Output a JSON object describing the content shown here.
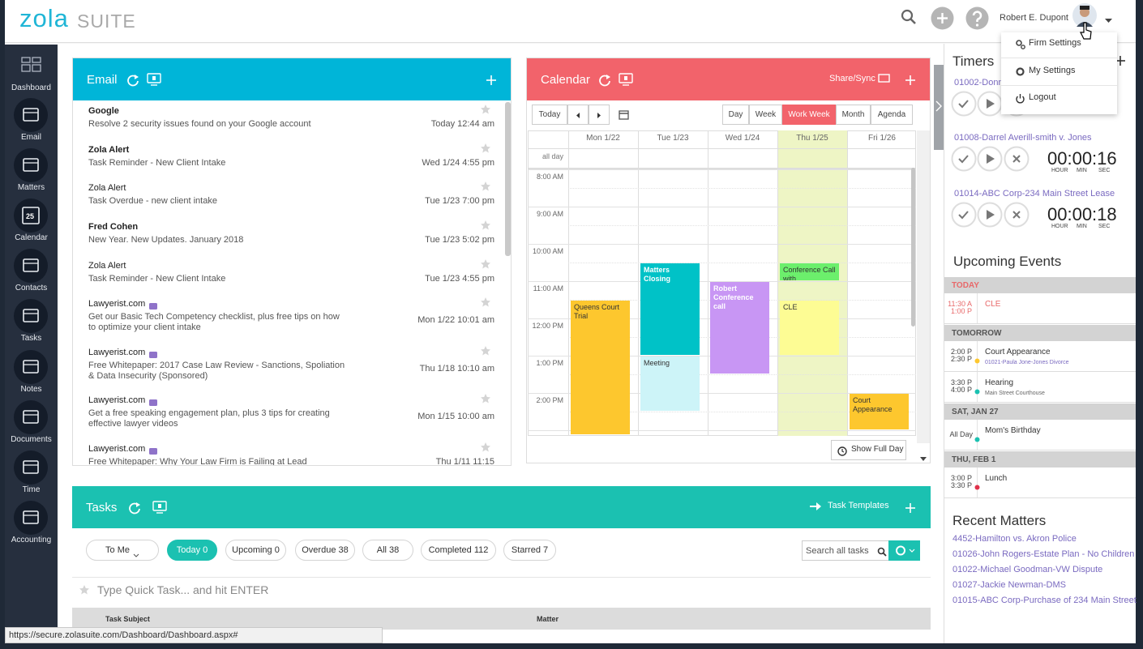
{
  "header": {
    "logo_main": "zola",
    "logo_sub": "SUITE",
    "user_name": "Robert E. Dupont"
  },
  "user_menu": [
    "Firm Settings",
    "My Settings",
    "Logout"
  ],
  "sidebar": [
    {
      "label": "Dashboard"
    },
    {
      "label": "Email"
    },
    {
      "label": "Matters"
    },
    {
      "label": "Calendar",
      "icon_text": "25"
    },
    {
      "label": "Contacts"
    },
    {
      "label": "Tasks"
    },
    {
      "label": "Notes"
    },
    {
      "label": "Documents"
    },
    {
      "label": "Time"
    },
    {
      "label": "Accounting"
    }
  ],
  "email": {
    "title": "Email",
    "items": [
      {
        "sender": "Google",
        "subject": "Resolve 2 security issues found on your Google account",
        "date": "Today 12:44 am",
        "unread": true
      },
      {
        "sender": "Zola Alert",
        "subject": "Task Reminder - New Client Intake",
        "date": "Wed 1/24 4:55 pm",
        "unread": true
      },
      {
        "sender": "Zola Alert",
        "subject": "Task Overdue - new client intake",
        "date": "Tue 1/23 7:00 pm",
        "unread": false
      },
      {
        "sender": "Fred Cohen",
        "subject": "New Year. New Updates. January 2018",
        "date": "Tue 1/23 5:02 pm",
        "unread": true
      },
      {
        "sender": "Zola Alert",
        "subject": "Task Reminder - New Client Intake",
        "date": "Tue 1/23 4:55 pm",
        "unread": false
      },
      {
        "sender": "Lawyerist.com",
        "subject": "Get our Basic Tech Competency checklist, plus free tips on how to optimize your client intake",
        "date": "Mon 1/22 10:01 am",
        "unread": false
      },
      {
        "sender": "Lawyerist.com",
        "subject": "Free Whitepaper: 2017 Case Law Review - Sanctions, Spoliation & Data Insecurity (Sponsored)",
        "date": "Thu 1/18 10:10 am",
        "unread": false
      },
      {
        "sender": "Lawyerist.com",
        "subject": "Get a free speaking engagement plan, plus 3 tips for creating effective lawyer videos",
        "date": "Mon 1/15 10:00 am",
        "unread": false
      },
      {
        "sender": "Lawyerist.com",
        "subject": "Free Whitepaper: Why Your Law Firm is Failing at Lead",
        "date": "Thu 1/11 11:15",
        "unread": false
      }
    ]
  },
  "calendar": {
    "title": "Calendar",
    "share": "Share/Sync",
    "today": "Today",
    "views": [
      "Day",
      "Week",
      "Work Week",
      "Month",
      "Agenda"
    ],
    "active_view": "Work Week",
    "days": [
      "Mon 1/22",
      "Tue 1/23",
      "Wed 1/24",
      "Thu 1/25",
      "Fri 1/26"
    ],
    "highlight_day": "Thu 1/25",
    "all_day": "all day",
    "times": [
      "8:00 AM",
      "9:00 AM",
      "10:00 AM",
      "11:00 AM",
      "12:00 PM",
      "1:00 PM",
      "2:00 PM"
    ],
    "events": [
      {
        "title": "Queens Court Trial",
        "color": "#fdc72e"
      },
      {
        "title": "Matters Closing",
        "color": "#00c2c7"
      },
      {
        "title": "Meeting",
        "color": "#cdf4f8"
      },
      {
        "title": "Robert Conference call",
        "color": "#c896f4"
      },
      {
        "title": "Conference Call with",
        "color": "#6cef6c"
      },
      {
        "title": "CLE",
        "color": "#fdfc94"
      },
      {
        "title": "Court Appearance",
        "color": "#fdc72e"
      }
    ],
    "show_full_day": "Show Full Day"
  },
  "tasks": {
    "title": "Tasks",
    "templates": "Task Templates",
    "filters": [
      "To Me",
      "Today 0",
      "Upcoming 0",
      "Overdue 38",
      "All 38",
      "Completed 112",
      "Starred 7"
    ],
    "active_filter": "Today 0",
    "search_placeholder": "Search all tasks",
    "quick_task": "Type Quick Task... and hit ENTER",
    "columns": [
      "Task Subject",
      "Matter"
    ]
  },
  "timers": {
    "title": "Timers",
    "time_labels": [
      "HOUR",
      "MIN",
      "SEC"
    ],
    "items": [
      {
        "name": "01002-Donn"
      },
      {
        "name": "01008-Darrel Averill-smith v. Jones",
        "time": "00:00:16"
      },
      {
        "name": "01014-ABC Corp-234 Main Street Lease",
        "time": "00:00:18"
      }
    ]
  },
  "upcoming": {
    "title": "Upcoming Events",
    "groups": [
      {
        "label": "TODAY",
        "events": [
          {
            "start": "11:30 A",
            "end": "1:00 P",
            "title": "CLE",
            "color": "#e8696a"
          }
        ]
      },
      {
        "label": "TOMORROW",
        "events": [
          {
            "start": "2:00 P",
            "end": "2:30 P",
            "title": "Court Appearance",
            "sub": "01021-Paula Jone-Jones Divorce",
            "color": "#fdc72e"
          },
          {
            "start": "3:30 P",
            "end": "4:00 P",
            "title": "Hearing",
            "sub": "Main Street Courthouse",
            "color": "#1bc1b1"
          }
        ]
      },
      {
        "label": "SAT, JAN 27",
        "events": [
          {
            "start": "All Day",
            "title": "Mom's Birthday",
            "color": "#1bc1b1"
          }
        ]
      },
      {
        "label": "THU, FEB 1",
        "events": [
          {
            "start": "3:00 P",
            "end": "3:30 P",
            "title": "Lunch",
            "color": "#e0314b"
          }
        ]
      }
    ]
  },
  "recent_matters": {
    "title": "Recent Matters",
    "items": [
      "4452-Hamilton vs. Akron Police",
      "01026-John Rogers-Estate Plan - No Children",
      "01022-Michael Goodman-VW Dispute",
      "01027-Jackie Newman-DMS",
      "01015-ABC Corp-Purchase of 234 Main Street"
    ]
  },
  "status_bar": "https://secure.zolasuite.com/Dashboard/Dashboard.aspx#"
}
